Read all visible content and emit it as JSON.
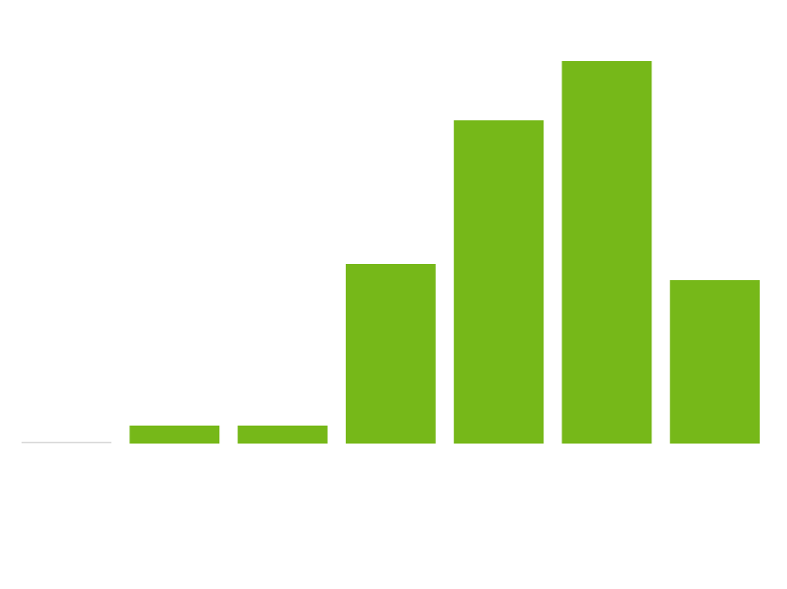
{
  "chart_data": {
    "type": "bar",
    "categories": [
      "",
      "",
      "",
      "",
      "",
      "",
      ""
    ],
    "values": [
      0,
      1,
      1,
      10,
      18,
      21.3,
      9.1
    ],
    "ylim": [
      0,
      21.3
    ],
    "grid": false,
    "legend": "none",
    "colors": {
      "bar": "#76b819",
      "zero_bar": "#d6d6d6",
      "background": "#ffffff"
    }
  }
}
